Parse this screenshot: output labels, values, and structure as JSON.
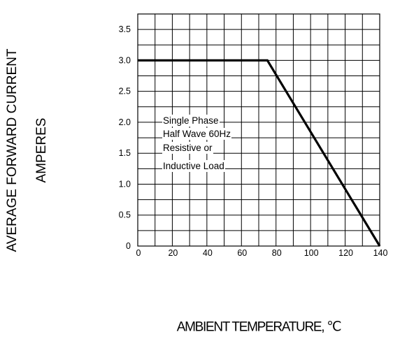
{
  "chart_data": {
    "type": "line",
    "ylabel_lines": [
      "AVERAGE FORWARD CURRENT",
      "AMPERES"
    ],
    "xlabel": "AMBIENT TEMPERATURE, ℃",
    "xlim": [
      0,
      140
    ],
    "ylim": [
      0,
      3.75
    ],
    "x_ticks": [
      0,
      20,
      40,
      60,
      80,
      100,
      120,
      140
    ],
    "x_tick_labels": [
      "0",
      "20",
      "40",
      "60",
      "80",
      "100",
      "120",
      "140"
    ],
    "y_ticks": [
      0,
      0.5,
      1.0,
      1.5,
      2.0,
      2.5,
      3.0,
      3.5
    ],
    "y_tick_labels": [
      "0",
      "0.5",
      "1.0",
      "1.5",
      "2.0",
      "2.5",
      "3.0",
      "3.5"
    ],
    "grid": true,
    "series": [
      {
        "x": [
          0,
          75,
          140
        ],
        "y": [
          3.0,
          3.0,
          0
        ]
      }
    ],
    "annotations": [
      "Single Phase",
      "Half Wave 60Hz",
      "Resistive or",
      "Inductive Load"
    ]
  }
}
